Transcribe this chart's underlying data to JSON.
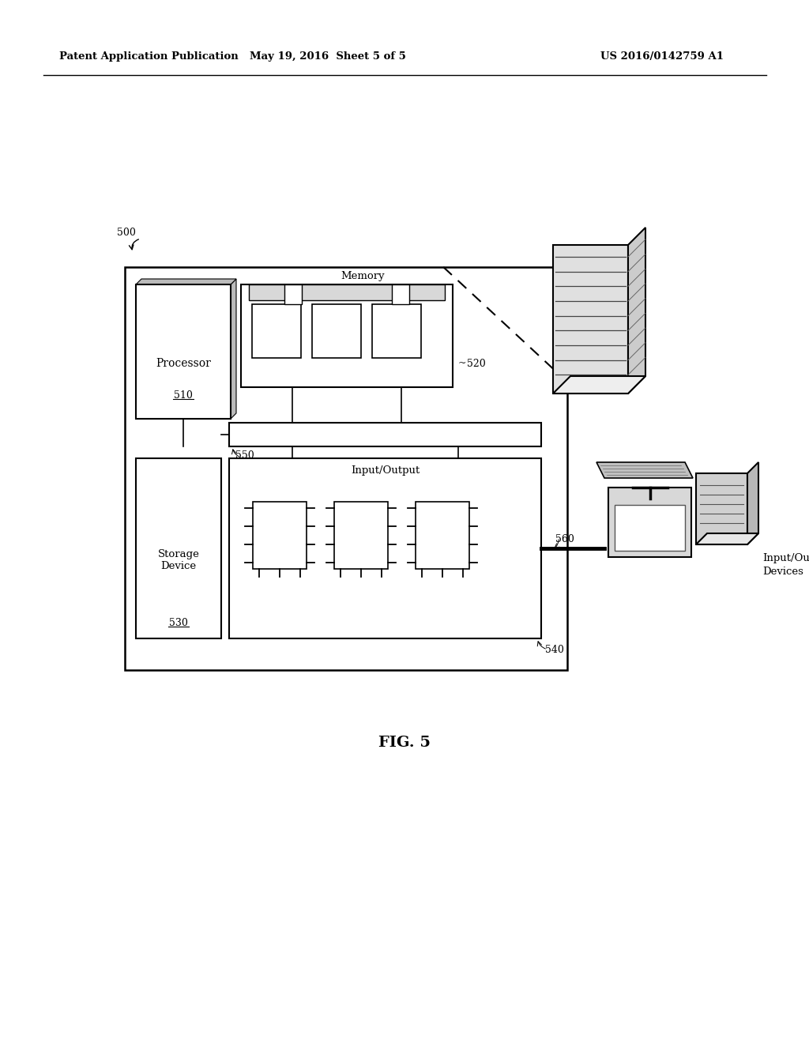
{
  "bg_color": "#ffffff",
  "header_left": "Patent Application Publication",
  "header_mid": "May 19, 2016  Sheet 5 of 5",
  "header_right": "US 2016/0142759 A1",
  "fig_label": "FIG. 5",
  "label_500": "500",
  "label_510": "510",
  "label_520": "520",
  "label_530": "530",
  "label_540": "540",
  "label_550": "550",
  "label_560": "560",
  "text_processor": "Processor",
  "text_memory": "Memory",
  "text_storage": "Storage\nDevice",
  "text_io": "Input/Output",
  "text_io_devices": "Input/Output\nDevices"
}
